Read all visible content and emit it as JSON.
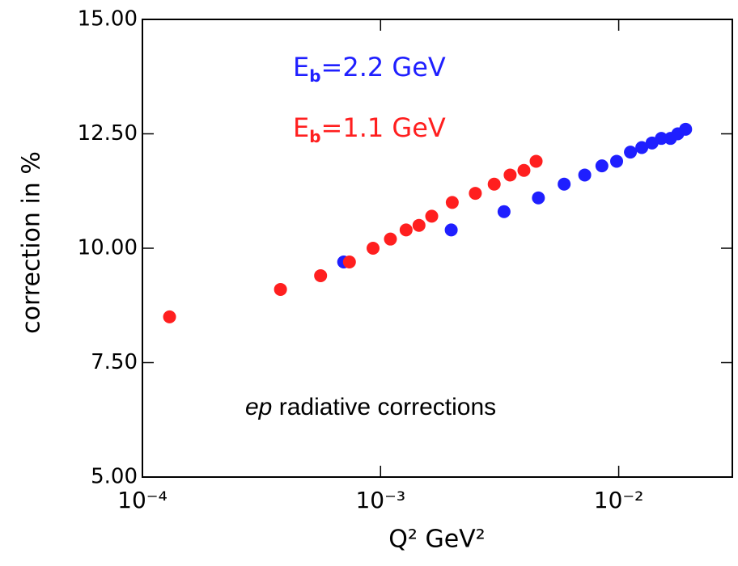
{
  "chart_data": {
    "type": "scatter",
    "x_label": "Q² GeV²",
    "y_label": "correction in %",
    "annotation": "ep radiative corrections",
    "xlog": true,
    "xlim": [
      0.0001,
      0.03
    ],
    "xticks": [
      {
        "value": 0.0001,
        "label": "10⁻⁴"
      },
      {
        "value": 0.001,
        "label": "10⁻³"
      },
      {
        "value": 0.01,
        "label": "10⁻²"
      }
    ],
    "ylim": [
      5,
      15
    ],
    "yticks": [
      {
        "value": 5,
        "label": "5.00"
      },
      {
        "value": 7.5,
        "label": "7.50"
      },
      {
        "value": 10,
        "label": "10.00"
      },
      {
        "value": 12.5,
        "label": "12.50"
      },
      {
        "value": 15,
        "label": "15.00"
      }
    ],
    "series": [
      {
        "name": "Eb=2.2 GeV",
        "color": "#1f1fff",
        "x": [
          0.0007,
          0.00198,
          0.0033,
          0.0046,
          0.0059,
          0.0072,
          0.0085,
          0.0098,
          0.0112,
          0.0125,
          0.0138,
          0.0151,
          0.0165,
          0.0177,
          0.0191
        ],
        "values": [
          9.7,
          10.4,
          10.8,
          11.1,
          11.4,
          11.6,
          11.8,
          11.9,
          12.1,
          12.2,
          12.3,
          12.4,
          12.4,
          12.5,
          12.6
        ]
      },
      {
        "name": "Eb=1.1 GeV",
        "color": "#ff1f1f",
        "x": [
          0.00013,
          0.00038,
          0.00056,
          0.00074,
          0.00093,
          0.0011,
          0.00128,
          0.00145,
          0.00164,
          0.002,
          0.0025,
          0.003,
          0.0035,
          0.004,
          0.0045
        ],
        "values": [
          8.5,
          9.1,
          9.4,
          9.7,
          10.0,
          10.2,
          10.4,
          10.5,
          10.7,
          11.0,
          11.2,
          11.4,
          11.6,
          11.7,
          11.9
        ]
      }
    ]
  }
}
